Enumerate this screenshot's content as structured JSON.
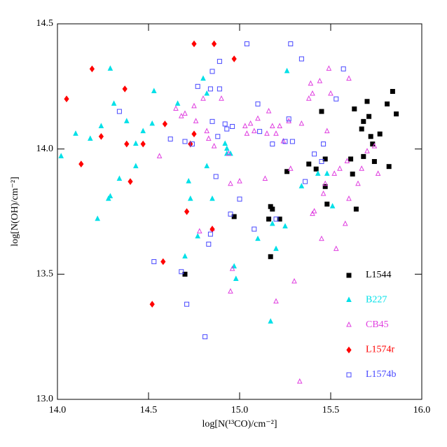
{
  "chart_data": {
    "type": "scatter",
    "x_label": "log[N(¹³CO)/cm⁻²]",
    "y_label": "log[N(OH)/cm⁻²]",
    "xlim": [
      14.0,
      16.0
    ],
    "ylim": [
      13.0,
      14.5
    ],
    "xticks": [
      {
        "value": 14,
        "label": "14.0"
      },
      {
        "value": 14.5,
        "label": "14.5"
      },
      {
        "value": 15,
        "label": "15.0"
      },
      {
        "value": 15.5,
        "label": "15.5"
      },
      {
        "value": 16,
        "label": "16.0"
      }
    ],
    "yticks": [
      {
        "value": 13,
        "label": "13.0"
      },
      {
        "value": 13.5,
        "label": "13.5"
      },
      {
        "value": 14,
        "label": "14.0"
      },
      {
        "value": 14.5,
        "label": "14.5"
      }
    ],
    "legend": "lower right",
    "series": [
      {
        "name": "L1544",
        "color": "#000000",
        "marker": "filled-square",
        "x": [
          14.7,
          14.97,
          15.18,
          15.17,
          15.16,
          15.22,
          15.17,
          15.26,
          15.38,
          15.42,
          15.45,
          15.47,
          15.47,
          15.48,
          15.61,
          15.62,
          15.63,
          15.64,
          15.67,
          15.68,
          15.68,
          15.7,
          15.71,
          15.72,
          15.73,
          15.74,
          15.77,
          15.81,
          15.82,
          15.84,
          15.86
        ],
        "y": [
          13.5,
          13.73,
          13.76,
          13.77,
          13.72,
          13.72,
          13.57,
          13.91,
          13.94,
          13.92,
          14.15,
          13.96,
          13.85,
          13.78,
          13.96,
          13.9,
          14.16,
          13.76,
          14.08,
          13.97,
          14.11,
          14.19,
          14.13,
          14.05,
          14.02,
          13.95,
          14.06,
          14.18,
          13.93,
          14.23,
          14.14
        ]
      },
      {
        "name": "B227",
        "color": "#00e0e8",
        "marker": "filled-triangle",
        "x": [
          14.02,
          14.1,
          14.18,
          14.22,
          14.24,
          14.28,
          14.29,
          14.29,
          14.31,
          14.34,
          14.38,
          14.43,
          14.43,
          14.47,
          14.52,
          14.53,
          14.66,
          14.7,
          14.72,
          14.73,
          14.77,
          14.8,
          14.82,
          14.82,
          14.85,
          14.92,
          14.93,
          14.93,
          14.95,
          14.98,
          14.97,
          15.1,
          15.17,
          15.18,
          15.2,
          15.25,
          15.26,
          15.34,
          15.43,
          15.48,
          15.51
        ],
        "y": [
          13.97,
          14.06,
          14.04,
          13.72,
          14.09,
          13.8,
          13.81,
          14.32,
          14.18,
          13.88,
          14.11,
          13.93,
          14.02,
          14.07,
          14.1,
          14.23,
          14.18,
          13.57,
          13.87,
          13.8,
          13.65,
          14.28,
          13.93,
          14.22,
          13.8,
          14.02,
          13.98,
          14.0,
          13.98,
          13.48,
          13.53,
          13.64,
          13.31,
          13.7,
          13.6,
          13.69,
          14.31,
          13.85,
          13.9,
          13.9,
          13.77
        ]
      },
      {
        "name": "CB45",
        "color": "#e040e0",
        "marker": "open-triangle",
        "x": [
          14.56,
          14.65,
          14.68,
          14.7,
          14.75,
          14.76,
          14.8,
          14.82,
          14.83,
          14.86,
          14.78,
          14.85,
          14.9,
          14.94,
          14.95,
          14.95,
          14.96,
          15.0,
          15.03,
          15.04,
          15.06,
          15.08,
          15.1,
          15.14,
          15.15,
          15.16,
          15.18,
          15.2,
          15.2,
          15.22,
          15.24,
          15.27,
          15.28,
          15.3,
          15.33,
          15.34,
          15.38,
          15.39,
          15.4,
          15.4,
          15.41,
          15.44,
          15.45,
          15.46,
          15.47,
          15.48,
          15.49,
          15.5,
          15.52,
          15.53,
          15.55,
          15.58,
          15.59,
          15.6,
          15.6,
          15.65,
          15.67,
          15.7,
          15.74,
          15.76
        ],
        "y": [
          13.97,
          14.16,
          14.13,
          14.14,
          14.17,
          14.11,
          14.2,
          14.07,
          14.04,
          14.01,
          13.67,
          13.68,
          14.2,
          13.98,
          13.86,
          13.43,
          13.52,
          13.87,
          14.09,
          14.06,
          14.1,
          14.07,
          14.12,
          13.88,
          14.06,
          14.15,
          14.09,
          14.06,
          13.39,
          14.09,
          14.03,
          14.11,
          13.92,
          13.47,
          13.07,
          14.1,
          14.2,
          14.26,
          14.22,
          13.74,
          13.75,
          14.27,
          13.64,
          13.82,
          13.86,
          14.07,
          14.32,
          14.22,
          13.9,
          13.6,
          13.92,
          13.7,
          13.95,
          14.28,
          13.8,
          13.86,
          13.92,
          13.99,
          14.01,
          13.9
        ]
      },
      {
        "name": "L1574r",
        "color": "#ff0000",
        "marker": "filled-diamond",
        "x": [
          14.05,
          14.13,
          14.19,
          14.24,
          14.37,
          14.38,
          14.4,
          14.47,
          14.52,
          14.58,
          14.59,
          14.71,
          14.73,
          14.75,
          14.75,
          14.85,
          14.86,
          14.97
        ],
        "y": [
          14.2,
          13.94,
          14.32,
          14.05,
          14.24,
          14.02,
          13.87,
          14.02,
          13.38,
          13.55,
          14.1,
          13.75,
          14.02,
          14.06,
          14.42,
          13.68,
          14.42,
          14.36
        ]
      },
      {
        "name": "L1574b",
        "color": "#4848ff",
        "marker": "open-square",
        "x": [
          14.34,
          14.53,
          14.62,
          14.68,
          14.7,
          14.71,
          14.74,
          14.77,
          14.81,
          14.83,
          14.84,
          14.84,
          14.85,
          14.85,
          14.87,
          14.88,
          14.89,
          14.89,
          14.92,
          14.93,
          14.95,
          14.96,
          15.0,
          15.04,
          15.08,
          15.1,
          15.11,
          15.18,
          15.2,
          15.25,
          15.27,
          15.28,
          15.29,
          15.34,
          15.41,
          15.46,
          15.53,
          15.57,
          15.36,
          15.45
        ],
        "y": [
          14.15,
          13.55,
          14.04,
          13.51,
          14.03,
          13.38,
          14.02,
          14.25,
          13.25,
          13.62,
          13.66,
          14.24,
          14.31,
          14.11,
          13.89,
          14.05,
          14.35,
          14.24,
          14.1,
          14.08,
          13.74,
          14.09,
          13.8,
          14.42,
          13.68,
          14.18,
          14.07,
          14.02,
          13.72,
          14.03,
          14.12,
          14.42,
          14.03,
          14.36,
          13.98,
          14.02,
          14.2,
          14.32,
          13.87,
          13.95
        ]
      }
    ]
  }
}
